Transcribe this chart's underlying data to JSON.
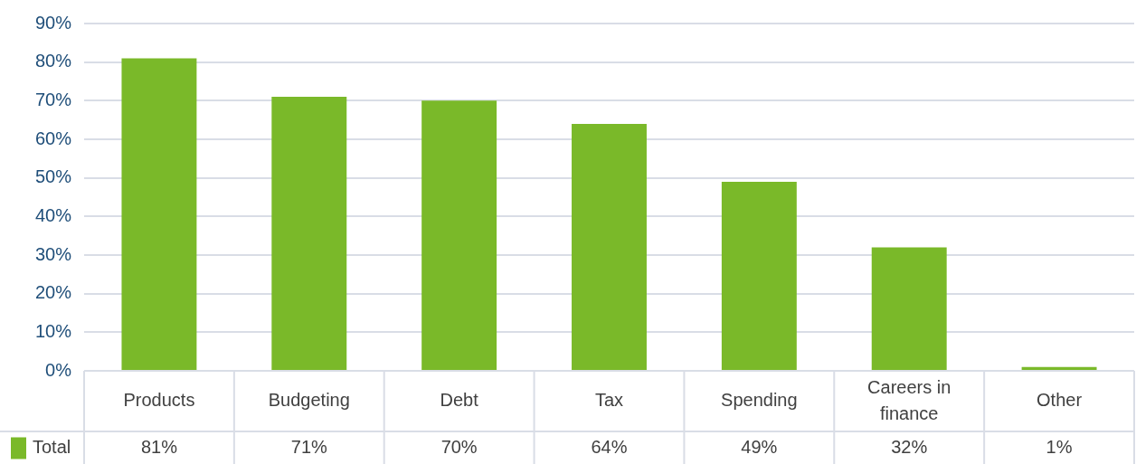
{
  "chart_data": {
    "type": "bar",
    "categories": [
      "Products",
      "Budgeting",
      "Debt",
      "Tax",
      "Spending",
      "Careers in finance",
      "Other"
    ],
    "series": [
      {
        "name": "Total",
        "color": "#7ab929",
        "values": [
          81,
          71,
          70,
          64,
          49,
          32,
          1
        ],
        "value_labels": [
          "81%",
          "71%",
          "70%",
          "64%",
          "49%",
          "32%",
          "1%"
        ]
      }
    ],
    "ylim": [
      0,
      90
    ],
    "yticks": [
      {
        "value": 0,
        "label": "0%"
      },
      {
        "value": 10,
        "label": "10%"
      },
      {
        "value": 20,
        "label": "20%"
      },
      {
        "value": 30,
        "label": "30%"
      },
      {
        "value": 40,
        "label": "40%"
      },
      {
        "value": 50,
        "label": "50%"
      },
      {
        "value": 60,
        "label": "60%"
      },
      {
        "value": 70,
        "label": "70%"
      },
      {
        "value": 80,
        "label": "80%"
      },
      {
        "value": 90,
        "label": "90%"
      }
    ],
    "grid": "y",
    "legend": "bottom left"
  }
}
